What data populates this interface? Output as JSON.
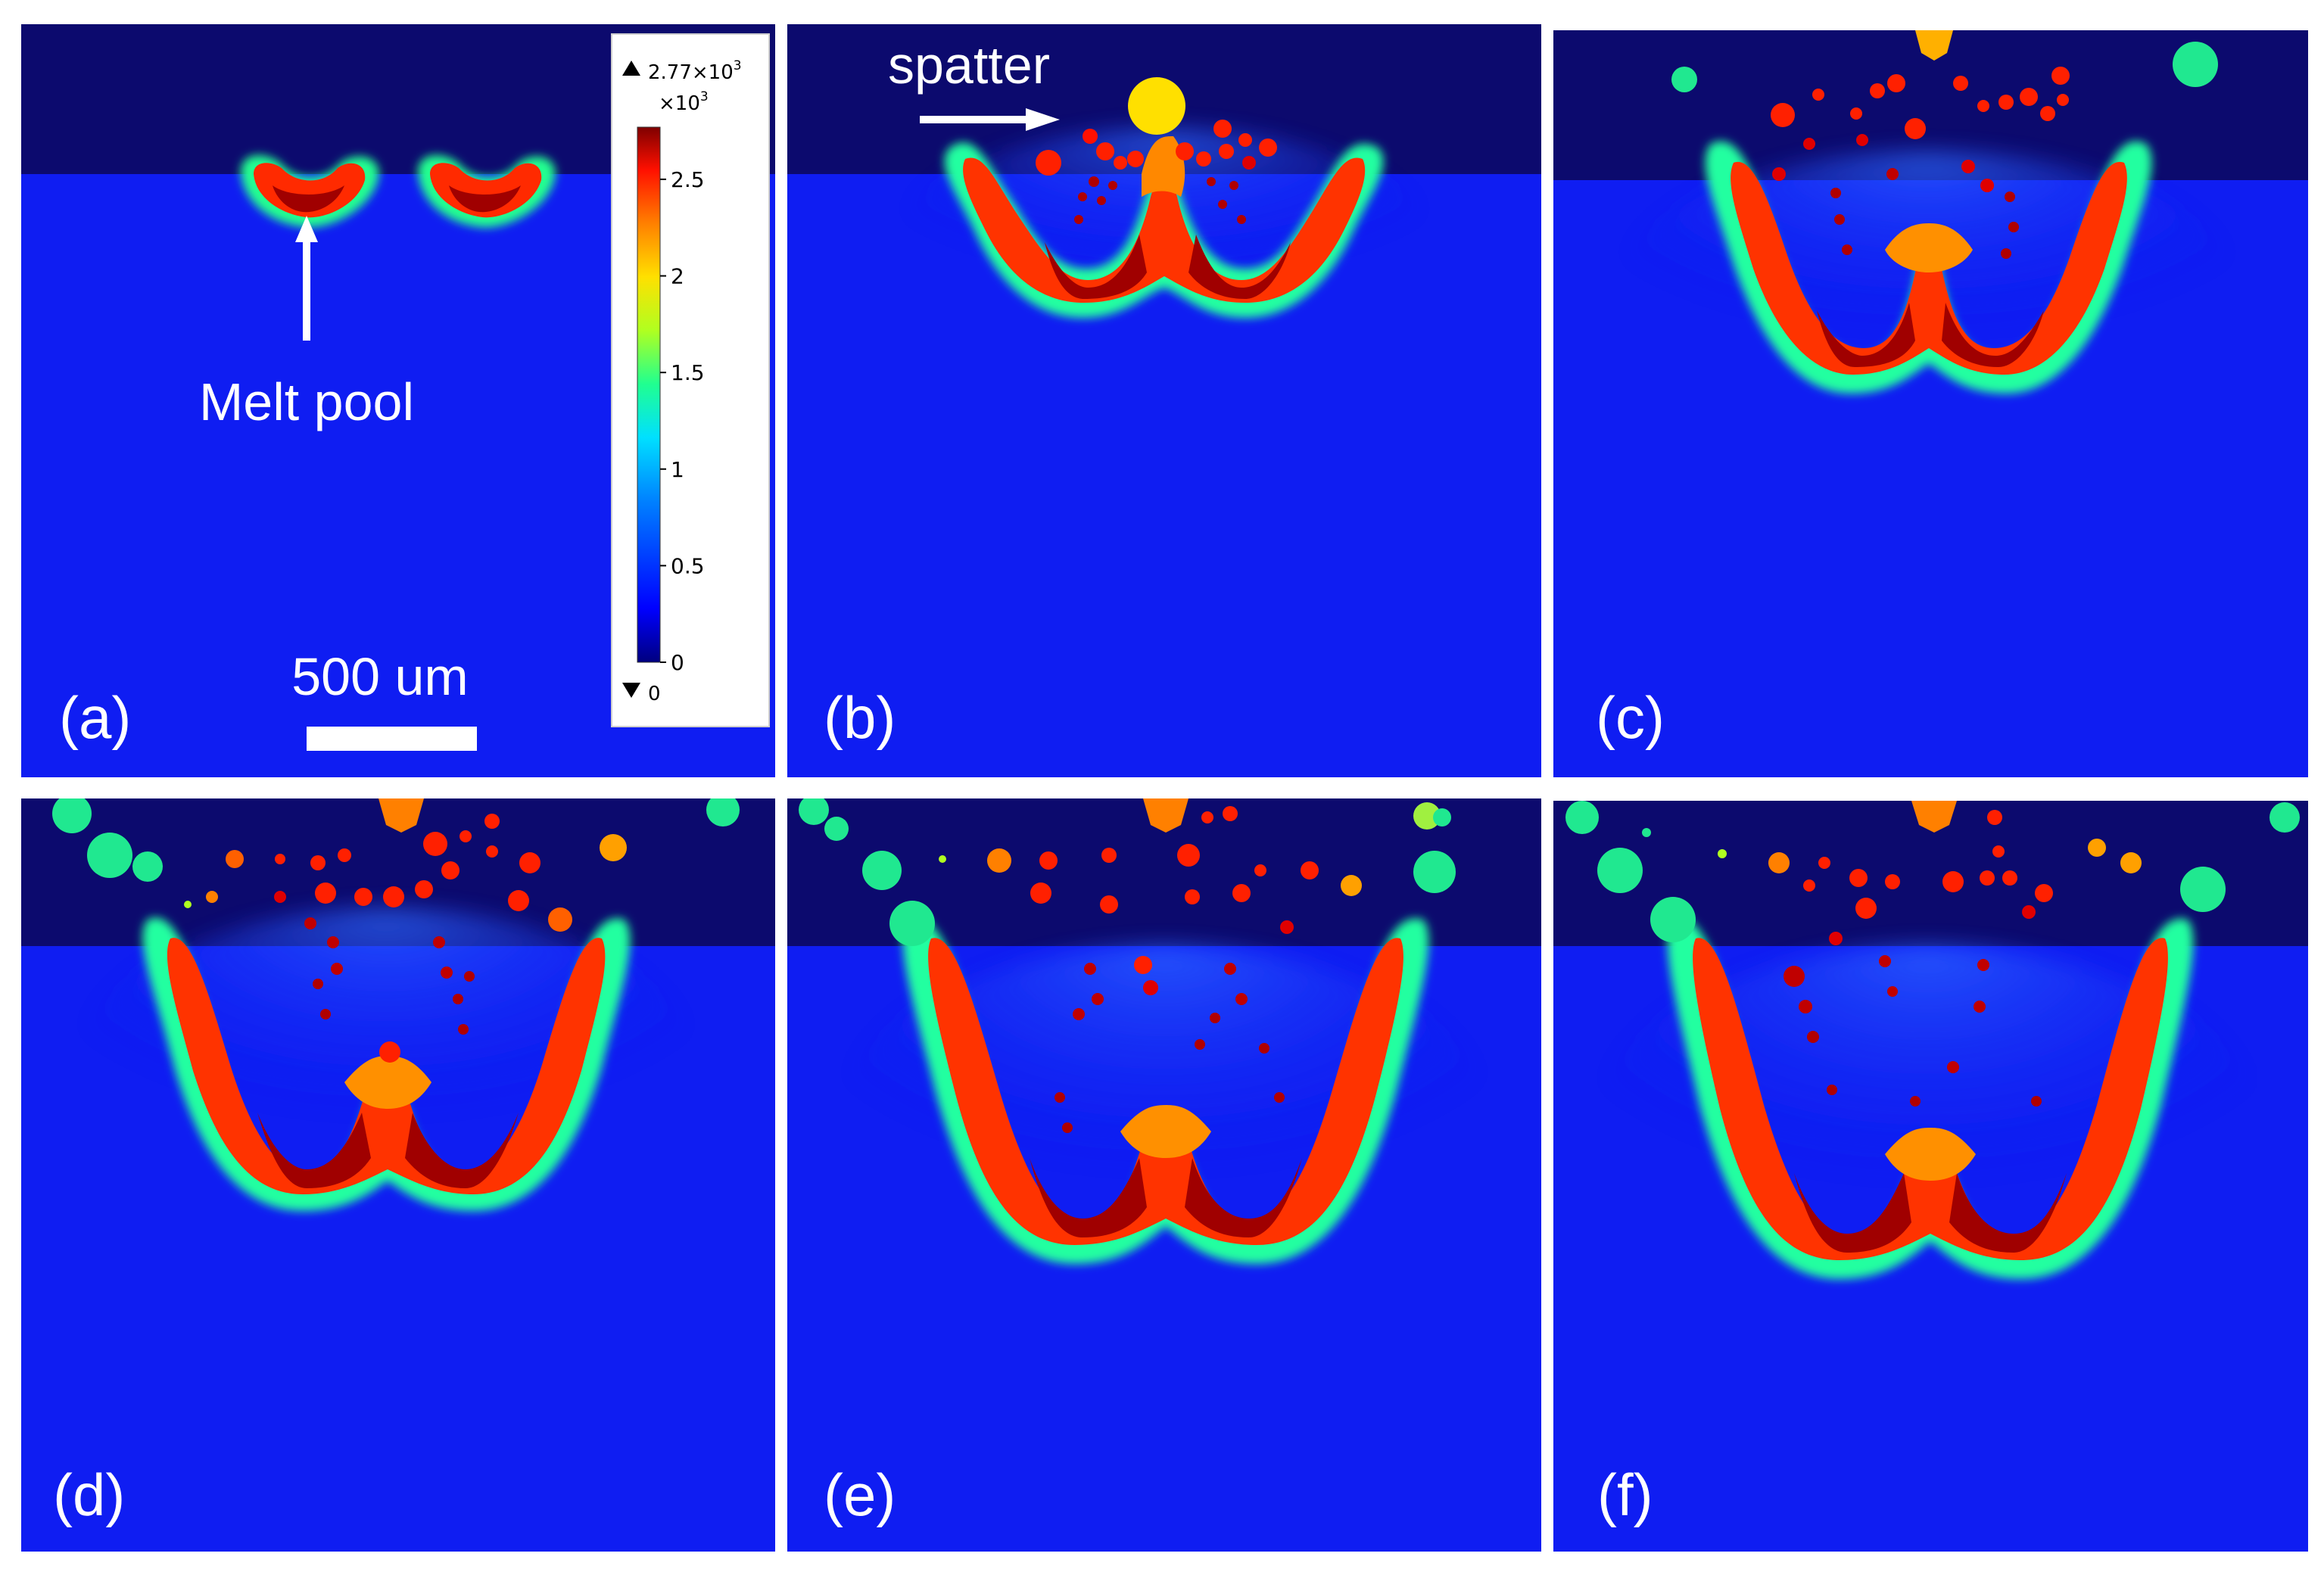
{
  "figure": {
    "panels": [
      {
        "id": "a",
        "label": "(a)"
      },
      {
        "id": "b",
        "label": "(b)"
      },
      {
        "id": "c",
        "label": "(c)"
      },
      {
        "id": "d",
        "label": "(d)"
      },
      {
        "id": "e",
        "label": "(e)"
      },
      {
        "id": "f",
        "label": "(f)"
      }
    ],
    "annotations": {
      "melt_pool": "Melt pool",
      "spatter": "spatter",
      "scale_bar": "500 um"
    },
    "colorbar": {
      "max_label": "2.77×10",
      "max_exp": "3",
      "multiplier": "×10",
      "multiplier_exp": "3",
      "min_label": "0",
      "ticks": [
        "2.5",
        "2",
        "1.5",
        "1",
        "0.5",
        "0"
      ],
      "tick_values": [
        2.5,
        2.0,
        1.5,
        1.0,
        0.5,
        0.0
      ],
      "range": [
        0,
        2.77
      ],
      "colors": [
        "#00007f",
        "#0000ff",
        "#0080ff",
        "#00e0ff",
        "#20ff90",
        "#b0ff20",
        "#ffe000",
        "#ff8000",
        "#ff1000",
        "#b00000",
        "#7f0000"
      ]
    },
    "colors": {
      "gas": "#0c0a6e",
      "substrate": "#0f1df2",
      "hot": "#c80000"
    }
  }
}
